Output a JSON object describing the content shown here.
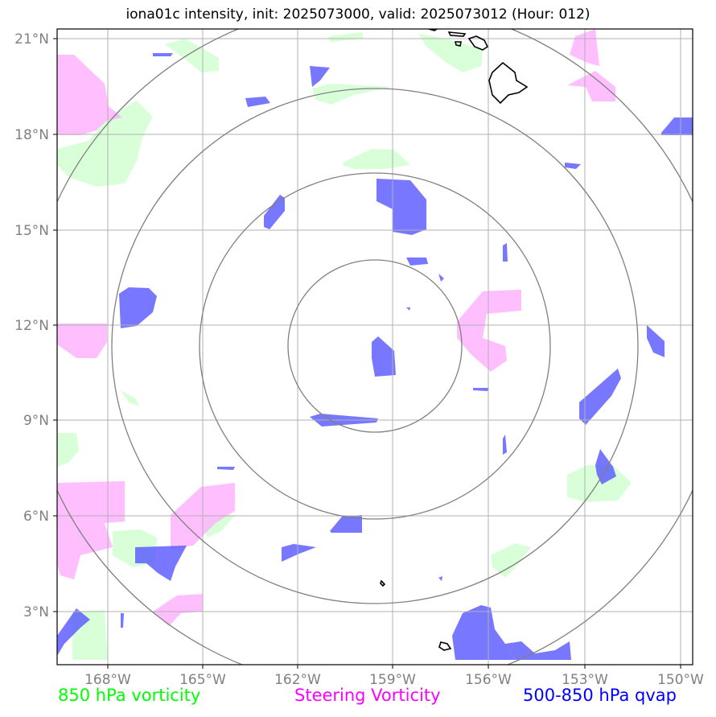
{
  "title": "iona01c intensity, init: 2025073000, valid: 2025073012 (Hour: 012)",
  "lat_labels": [
    "21°N",
    "18°N",
    "15°N",
    "12°N",
    "9°N",
    "6°N",
    "3°N"
  ],
  "lon_labels": [
    "168°W",
    "165°W",
    "162°W",
    "159°W",
    "156°W",
    "153°W",
    "150°W"
  ],
  "legend": {
    "l850": "850 hPa vorticity",
    "steering": "Steering Vorticity",
    "qvap": "500-850 hPa qvap"
  },
  "colors": {
    "vort850": "#ccffcc",
    "steering": "#ffaaff",
    "qvap": "#5555ff",
    "grid": "#b0b0b0",
    "rings": "#808080",
    "legend_850": "#00ff00",
    "legend_steering": "#ff00ff",
    "legend_qvap": "#0000ff"
  }
}
